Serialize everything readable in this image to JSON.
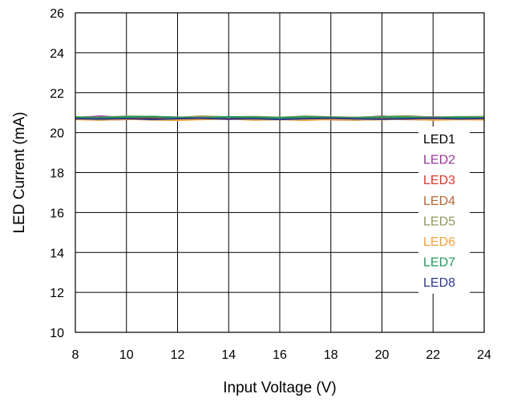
{
  "chart_data": {
    "type": "line",
    "title": "",
    "xlabel": "Input Voltage (V)",
    "ylabel": "LED Current (mA)",
    "xlim": [
      8,
      24
    ],
    "ylim": [
      10,
      26
    ],
    "xticks": [
      8,
      10,
      12,
      14,
      16,
      18,
      20,
      22,
      24
    ],
    "yticks": [
      10,
      12,
      14,
      16,
      18,
      20,
      22,
      24,
      26
    ],
    "grid": true,
    "legend_position": "right",
    "x": [
      8,
      9,
      10,
      11,
      12,
      13,
      14,
      15,
      16,
      17,
      18,
      19,
      20,
      21,
      22,
      23,
      24
    ],
    "series": [
      {
        "name": "LED1",
        "color": "#000000",
        "values": [
          20.72,
          20.7,
          20.72,
          20.74,
          20.72,
          20.7,
          20.73,
          20.72,
          20.7,
          20.72,
          20.74,
          20.71,
          20.7,
          20.72,
          20.74,
          20.72,
          20.73
        ]
      },
      {
        "name": "LED2",
        "color": "#993399",
        "values": [
          20.75,
          20.82,
          20.76,
          20.8,
          20.77,
          20.74,
          20.78,
          20.76,
          20.75,
          20.8,
          20.77,
          20.74,
          20.82,
          20.76,
          20.78,
          20.75,
          20.77
        ]
      },
      {
        "name": "LED3",
        "color": "#e2342c",
        "values": [
          20.7,
          20.66,
          20.72,
          20.69,
          20.73,
          20.7,
          20.67,
          20.72,
          20.69,
          20.74,
          20.7,
          20.67,
          20.72,
          20.78,
          20.7,
          20.66,
          20.72
        ]
      },
      {
        "name": "LED4",
        "color": "#b5683a",
        "values": [
          20.68,
          20.64,
          20.66,
          20.69,
          20.65,
          20.67,
          20.7,
          20.64,
          20.66,
          20.69,
          20.65,
          20.63,
          20.68,
          20.66,
          20.64,
          20.67,
          20.69
        ]
      },
      {
        "name": "LED5",
        "color": "#8c9a5a",
        "values": [
          20.78,
          20.76,
          20.82,
          20.8,
          20.76,
          20.82,
          20.78,
          20.8,
          20.76,
          20.82,
          20.78,
          20.76,
          20.8,
          20.83,
          20.77,
          20.79,
          20.8
        ]
      },
      {
        "name": "LED6",
        "color": "#f2a33a",
        "values": [
          20.66,
          20.63,
          20.68,
          20.64,
          20.62,
          20.66,
          20.69,
          20.63,
          20.66,
          20.62,
          20.67,
          20.64,
          20.65,
          20.69,
          20.63,
          20.66,
          20.64
        ]
      },
      {
        "name": "LED7",
        "color": "#1f9e5a",
        "values": [
          20.76,
          20.74,
          20.78,
          20.8,
          20.75,
          20.73,
          20.79,
          20.76,
          20.74,
          20.78,
          20.75,
          20.73,
          20.78,
          20.76,
          20.74,
          20.77,
          20.75
        ]
      },
      {
        "name": "LED8",
        "color": "#2e3a8c",
        "values": [
          20.7,
          20.68,
          20.71,
          20.66,
          20.7,
          20.72,
          20.68,
          20.7,
          20.66,
          20.7,
          20.72,
          20.69,
          20.67,
          20.7,
          20.72,
          20.69,
          20.71
        ]
      }
    ]
  }
}
